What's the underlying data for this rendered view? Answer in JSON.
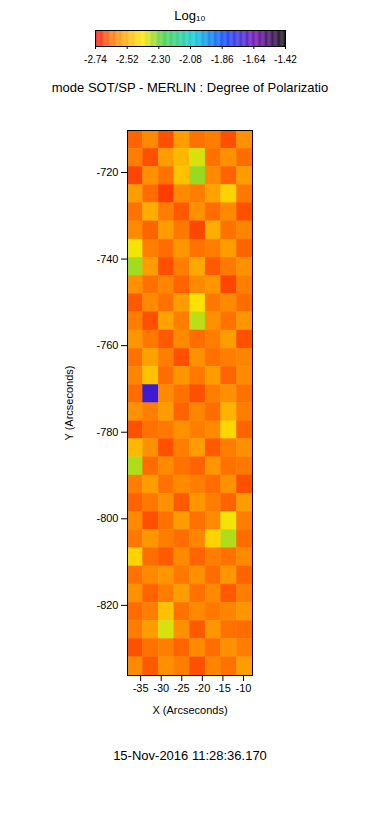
{
  "chart_data": {
    "type": "heatmap",
    "title": "mode SOT/SP - MERLIN : Degree of Polarizatio",
    "caption": "15-Nov-2016 11:28:36.170",
    "x_label": "X (Arcseconds)",
    "y_label": "Y (Arcseconds)",
    "xlim": [
      -38.2,
      -7.8
    ],
    "ylim": [
      -836.2,
      -710.3
    ],
    "xticks": [
      -35,
      -30,
      -25,
      -20,
      -15,
      -10
    ],
    "yticks": [
      -720,
      -740,
      -760,
      -780,
      -800,
      -820
    ],
    "x_edges": [
      -38.2,
      -34.4,
      -30.6,
      -26.8,
      -23.0,
      -19.2,
      -15.4,
      -11.6,
      -7.8
    ],
    "y_edges": [
      -710.3,
      -714.5,
      -718.7,
      -722.9,
      -727.1,
      -731.3,
      -735.5,
      -739.7,
      -743.9,
      -748.1,
      -752.3,
      -756.5,
      -760.7,
      -764.9,
      -769.1,
      -773.3,
      -777.5,
      -781.6,
      -785.8,
      -790.0,
      -794.2,
      -798.4,
      -802.6,
      -806.8,
      -811.0,
      -815.2,
      -819.4,
      -823.6,
      -827.8,
      -832.0,
      -836.2
    ],
    "values": [
      [
        -2.64,
        -2.58,
        -2.66,
        -2.55,
        -2.62,
        -2.6,
        -2.66,
        -2.57
      ],
      [
        -2.6,
        -2.66,
        -2.55,
        -2.5,
        -2.38,
        -2.62,
        -2.57,
        -2.63
      ],
      [
        -2.67,
        -2.57,
        -2.62,
        -2.48,
        -2.33,
        -2.58,
        -2.64,
        -2.55
      ],
      [
        -2.55,
        -2.63,
        -2.68,
        -2.58,
        -2.6,
        -2.54,
        -2.45,
        -2.61
      ],
      [
        -2.62,
        -2.52,
        -2.6,
        -2.65,
        -2.57,
        -2.63,
        -2.58,
        -2.66
      ],
      [
        -2.58,
        -2.64,
        -2.55,
        -2.61,
        -2.67,
        -2.52,
        -2.62,
        -2.59
      ],
      [
        -2.4,
        -2.6,
        -2.63,
        -2.56,
        -2.62,
        -2.6,
        -2.55,
        -2.64
      ],
      [
        -2.34,
        -2.55,
        -2.66,
        -2.6,
        -2.53,
        -2.65,
        -2.61,
        -2.57
      ],
      [
        -2.57,
        -2.62,
        -2.59,
        -2.64,
        -2.58,
        -2.56,
        -2.67,
        -2.6
      ],
      [
        -2.65,
        -2.58,
        -2.62,
        -2.55,
        -2.42,
        -2.61,
        -2.58,
        -2.63
      ],
      [
        -2.6,
        -2.66,
        -2.54,
        -2.6,
        -2.36,
        -2.57,
        -2.62,
        -2.56
      ],
      [
        -2.56,
        -2.61,
        -2.65,
        -2.58,
        -2.63,
        -2.6,
        -2.55,
        -2.66
      ],
      [
        -2.62,
        -2.54,
        -2.6,
        -2.66,
        -2.57,
        -2.62,
        -2.6,
        -2.59
      ],
      [
        -2.59,
        -2.48,
        -2.63,
        -2.56,
        -2.61,
        -2.55,
        -2.64,
        -2.58
      ],
      [
        -2.63,
        -1.72,
        -2.58,
        -2.62,
        -2.66,
        -2.6,
        -2.57,
        -2.62
      ],
      [
        -2.57,
        -2.6,
        -2.55,
        -2.64,
        -2.59,
        -2.63,
        -2.51,
        -2.6
      ],
      [
        -2.66,
        -2.62,
        -2.61,
        -2.57,
        -2.6,
        -2.58,
        -2.44,
        -2.64
      ],
      [
        -2.5,
        -2.57,
        -2.66,
        -2.6,
        -2.55,
        -2.65,
        -2.6,
        -2.57
      ],
      [
        -2.35,
        -2.63,
        -2.58,
        -2.62,
        -2.64,
        -2.56,
        -2.62,
        -2.61
      ],
      [
        -2.6,
        -2.55,
        -2.62,
        -2.58,
        -2.6,
        -2.63,
        -2.57,
        -2.66
      ],
      [
        -2.64,
        -2.61,
        -2.57,
        -2.65,
        -2.56,
        -2.6,
        -2.64,
        -2.55
      ],
      [
        -2.58,
        -2.66,
        -2.62,
        -2.55,
        -2.62,
        -2.58,
        -2.4,
        -2.6
      ],
      [
        -2.61,
        -2.56,
        -2.6,
        -2.63,
        -2.59,
        -2.45,
        -2.35,
        -2.63
      ],
      [
        -2.45,
        -2.63,
        -2.65,
        -2.58,
        -2.64,
        -2.6,
        -2.62,
        -2.58
      ],
      [
        -2.62,
        -2.58,
        -2.56,
        -2.61,
        -2.57,
        -2.63,
        -2.56,
        -2.64
      ],
      [
        -2.57,
        -2.64,
        -2.6,
        -2.55,
        -2.62,
        -2.58,
        -2.65,
        -2.6
      ],
      [
        -2.63,
        -2.6,
        -2.48,
        -2.62,
        -2.58,
        -2.61,
        -2.59,
        -2.56
      ],
      [
        -2.6,
        -2.55,
        -2.38,
        -2.57,
        -2.65,
        -2.56,
        -2.62,
        -2.63
      ],
      [
        -2.66,
        -2.62,
        -2.6,
        -2.64,
        -2.58,
        -2.63,
        -2.57,
        -2.6
      ],
      [
        -2.58,
        -2.65,
        -2.57,
        -2.6,
        -2.66,
        -2.59,
        -2.62,
        -2.55
      ]
    ],
    "colorbar": {
      "label": "Log₁₀",
      "range": [
        -2.74,
        -1.42
      ],
      "ticks": [
        -2.74,
        -2.52,
        {
          "value": -2.3,
          "label": "-2.30"
        },
        -2.08,
        -1.86,
        -1.64,
        -1.42
      ]
    }
  }
}
